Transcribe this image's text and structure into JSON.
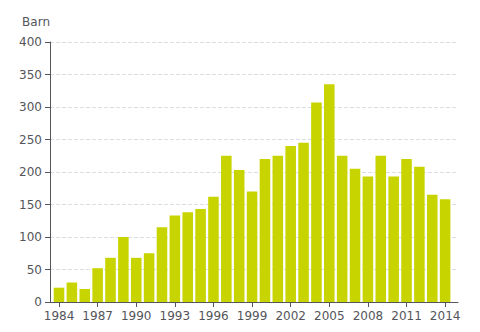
{
  "chart_data": {
    "type": "bar",
    "ylabel": "Barn",
    "x": [
      1984,
      1985,
      1986,
      1987,
      1988,
      1989,
      1990,
      1991,
      1992,
      1993,
      1994,
      1995,
      1996,
      1997,
      1998,
      1999,
      2000,
      2001,
      2002,
      2003,
      2004,
      2005,
      2006,
      2007,
      2008,
      2009,
      2010,
      2011,
      2012,
      2013,
      2014
    ],
    "values": [
      22,
      30,
      20,
      52,
      68,
      100,
      68,
      75,
      115,
      133,
      138,
      143,
      162,
      225,
      203,
      170,
      220,
      225,
      240,
      245,
      307,
      335,
      225,
      205,
      193,
      225,
      193,
      220,
      208,
      165,
      158
    ],
    "color": "#c8d400",
    "xlim": [
      1983.3,
      2015.0
    ],
    "xticks": [
      1984,
      1987,
      1990,
      1993,
      1996,
      1999,
      2002,
      2005,
      2008,
      2011,
      2014
    ],
    "ylim": [
      0,
      400
    ],
    "yticks": [
      0,
      50,
      100,
      150,
      200,
      250,
      300,
      350,
      400
    ],
    "grid": true
  }
}
